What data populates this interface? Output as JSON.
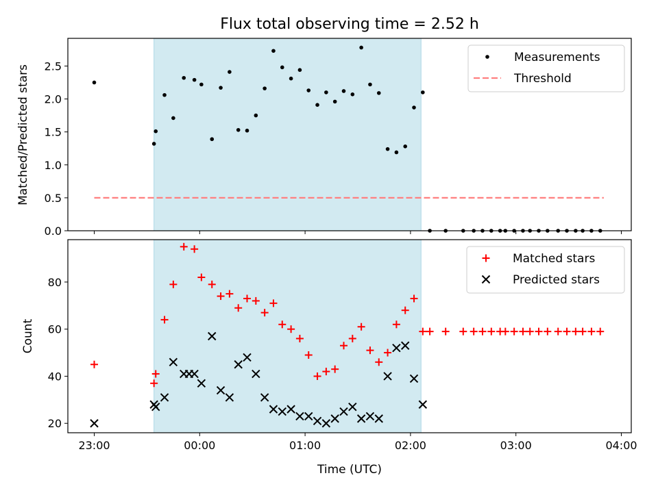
{
  "title": "Flux total observing time = 2.52 h",
  "chart_data": [
    {
      "type": "scatter",
      "ylabel": "Matched/Predicted stars",
      "xlabel": "",
      "ylim": [
        0,
        2.92
      ],
      "yticks": [
        "0.0",
        "0.5",
        "1.0",
        "1.5",
        "2.0",
        "2.5"
      ],
      "yticks_values": [
        0,
        0.5,
        1.0,
        1.5,
        2.0,
        2.5
      ],
      "shaded_interval": [
        "23:34",
        "02:06"
      ],
      "shade_color": "#add8e6",
      "legend_position": "top-right",
      "threshold": {
        "name": "Threshold",
        "value": 0.5,
        "x_start": "23:00",
        "x_end": "03:50",
        "color": "#ff7f7f"
      },
      "series": [
        {
          "name": "Measurements",
          "marker": "dot",
          "color": "#000000",
          "points": [
            [
              "23:00",
              2.25
            ],
            [
              "23:34",
              1.32
            ],
            [
              "23:35",
              1.51
            ],
            [
              "23:40",
              2.06
            ],
            [
              "23:45",
              1.71
            ],
            [
              "23:51",
              2.32
            ],
            [
              "23:57",
              2.29
            ],
            [
              "00:01",
              2.22
            ],
            [
              "00:07",
              1.39
            ],
            [
              "00:12",
              2.17
            ],
            [
              "00:17",
              2.41
            ],
            [
              "00:22",
              1.53
            ],
            [
              "00:27",
              1.52
            ],
            [
              "00:32",
              1.75
            ],
            [
              "00:37",
              2.16
            ],
            [
              "00:42",
              2.73
            ],
            [
              "00:47",
              2.48
            ],
            [
              "00:52",
              2.31
            ],
            [
              "00:57",
              2.44
            ],
            [
              "01:02",
              2.13
            ],
            [
              "01:07",
              1.91
            ],
            [
              "01:12",
              2.1
            ],
            [
              "01:17",
              1.96
            ],
            [
              "01:22",
              2.12
            ],
            [
              "01:27",
              2.07
            ],
            [
              "01:32",
              2.78
            ],
            [
              "01:37",
              2.22
            ],
            [
              "01:42",
              2.09
            ],
            [
              "01:47",
              1.24
            ],
            [
              "01:52",
              1.19
            ],
            [
              "01:57",
              1.28
            ],
            [
              "02:02",
              1.87
            ],
            [
              "02:07",
              2.1
            ],
            [
              "02:11",
              0.0
            ],
            [
              "02:20",
              0.0
            ],
            [
              "02:30",
              0.0
            ],
            [
              "02:36",
              0.0
            ],
            [
              "02:41",
              0.0
            ],
            [
              "02:46",
              0.0
            ],
            [
              "02:51",
              0.0
            ],
            [
              "02:54",
              0.0
            ],
            [
              "02:59",
              0.0
            ],
            [
              "03:04",
              0.0
            ],
            [
              "03:08",
              0.0
            ],
            [
              "03:13",
              0.0
            ],
            [
              "03:18",
              0.0
            ],
            [
              "03:24",
              0.0
            ],
            [
              "03:29",
              0.0
            ],
            [
              "03:34",
              0.0
            ],
            [
              "03:38",
              0.0
            ],
            [
              "03:43",
              0.0
            ],
            [
              "03:48",
              0.0
            ]
          ]
        }
      ]
    },
    {
      "type": "scatter",
      "ylabel": "Count",
      "xlabel": "Time (UTC)",
      "ylim": [
        16,
        98
      ],
      "yticks": [
        "20",
        "40",
        "60",
        "80"
      ],
      "yticks_values": [
        20,
        40,
        60,
        80
      ],
      "xticks": [
        "23:00",
        "00:00",
        "01:00",
        "02:00",
        "03:00",
        "04:00"
      ],
      "shaded_interval": [
        "23:34",
        "02:06"
      ],
      "shade_color": "#add8e6",
      "legend_position": "top-right",
      "series": [
        {
          "name": "Matched stars",
          "marker": "plus",
          "color": "#ff0000",
          "points": [
            [
              "23:00",
              45
            ],
            [
              "23:34",
              37
            ],
            [
              "23:35",
              41
            ],
            [
              "23:40",
              64
            ],
            [
              "23:45",
              79
            ],
            [
              "23:51",
              95
            ],
            [
              "23:57",
              94
            ],
            [
              "00:01",
              82
            ],
            [
              "00:07",
              79
            ],
            [
              "00:12",
              74
            ],
            [
              "00:17",
              75
            ],
            [
              "00:22",
              69
            ],
            [
              "00:27",
              73
            ],
            [
              "00:32",
              72
            ],
            [
              "00:37",
              67
            ],
            [
              "00:42",
              71
            ],
            [
              "00:47",
              62
            ],
            [
              "00:52",
              60
            ],
            [
              "00:57",
              56
            ],
            [
              "01:02",
              49
            ],
            [
              "01:07",
              40
            ],
            [
              "01:12",
              42
            ],
            [
              "01:17",
              43
            ],
            [
              "01:22",
              53
            ],
            [
              "01:27",
              56
            ],
            [
              "01:32",
              61
            ],
            [
              "01:37",
              51
            ],
            [
              "01:42",
              46
            ],
            [
              "01:47",
              50
            ],
            [
              "01:52",
              62
            ],
            [
              "01:57",
              68
            ],
            [
              "02:02",
              73
            ],
            [
              "02:07",
              59
            ],
            [
              "02:11",
              59
            ],
            [
              "02:20",
              59
            ],
            [
              "02:30",
              59
            ],
            [
              "02:36",
              59
            ],
            [
              "02:41",
              59
            ],
            [
              "02:46",
              59
            ],
            [
              "02:51",
              59
            ],
            [
              "02:54",
              59
            ],
            [
              "02:59",
              59
            ],
            [
              "03:04",
              59
            ],
            [
              "03:08",
              59
            ],
            [
              "03:13",
              59
            ],
            [
              "03:18",
              59
            ],
            [
              "03:24",
              59
            ],
            [
              "03:29",
              59
            ],
            [
              "03:34",
              59
            ],
            [
              "03:38",
              59
            ],
            [
              "03:43",
              59
            ],
            [
              "03:48",
              59
            ]
          ]
        },
        {
          "name": "Predicted stars",
          "marker": "x",
          "color": "#000000",
          "points": [
            [
              "23:00",
              20
            ],
            [
              "23:34",
              28
            ],
            [
              "23:35",
              27
            ],
            [
              "23:40",
              31
            ],
            [
              "23:45",
              46
            ],
            [
              "23:51",
              41
            ],
            [
              "23:54",
              41
            ],
            [
              "23:57",
              41
            ],
            [
              "00:01",
              37
            ],
            [
              "00:07",
              57
            ],
            [
              "00:12",
              34
            ],
            [
              "00:17",
              31
            ],
            [
              "00:22",
              45
            ],
            [
              "00:27",
              48
            ],
            [
              "00:32",
              41
            ],
            [
              "00:37",
              31
            ],
            [
              "00:42",
              26
            ],
            [
              "00:47",
              25
            ],
            [
              "00:52",
              26
            ],
            [
              "00:57",
              23
            ],
            [
              "01:02",
              23
            ],
            [
              "01:07",
              21
            ],
            [
              "01:12",
              20
            ],
            [
              "01:17",
              22
            ],
            [
              "01:22",
              25
            ],
            [
              "01:27",
              27
            ],
            [
              "01:32",
              22
            ],
            [
              "01:37",
              23
            ],
            [
              "01:42",
              22
            ],
            [
              "01:47",
              40
            ],
            [
              "01:52",
              52
            ],
            [
              "01:57",
              53
            ],
            [
              "02:02",
              39
            ],
            [
              "02:07",
              28
            ]
          ]
        }
      ]
    }
  ]
}
